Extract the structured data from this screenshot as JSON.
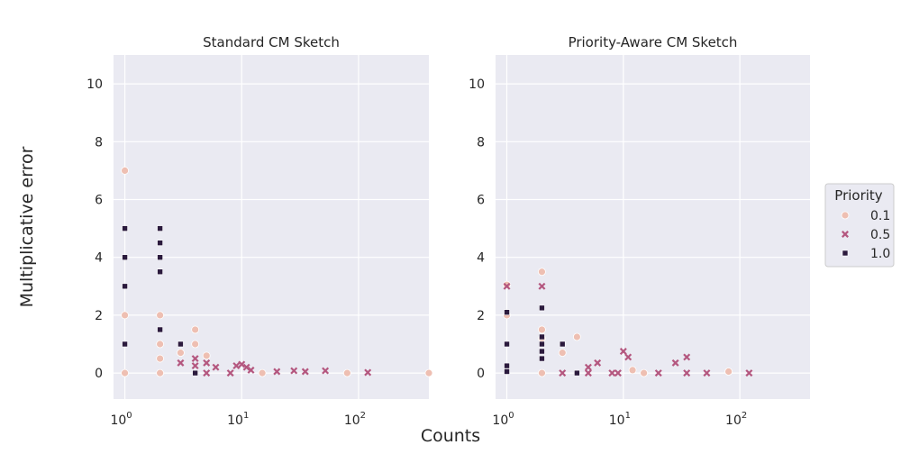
{
  "figure": {
    "xlabel": "Counts",
    "ylabel": "Multiplicative error"
  },
  "legend": {
    "title": "Priority",
    "placement": "right",
    "entries": [
      {
        "label": "0.1",
        "marker": "circle",
        "color": "#eebfb2"
      },
      {
        "label": "0.5",
        "marker": "x",
        "color": "#b4577f"
      },
      {
        "label": "1.0",
        "marker": "square",
        "color": "#2b1a3d"
      }
    ]
  },
  "colors": {
    "panel_background": "#eaeaf2",
    "grid": "#ffffff",
    "text": "#262626"
  },
  "chart_data": [
    {
      "type": "scatter",
      "title": "Standard CM Sketch",
      "xscale": "log",
      "xlim": [
        0.8,
        400
      ],
      "ylim": [
        -0.9,
        11
      ],
      "xticks": [
        1,
        10,
        100
      ],
      "xtick_labels": [
        "10^0",
        "10^1",
        "10^2"
      ],
      "yticks": [
        0,
        2,
        4,
        6,
        8,
        10
      ],
      "grid": true,
      "series": [
        {
          "name": "0.1",
          "marker": "circle",
          "color": "#eebfb2",
          "points": [
            [
              1,
              7
            ],
            [
              1,
              2
            ],
            [
              1,
              0
            ],
            [
              2,
              2
            ],
            [
              2,
              1
            ],
            [
              2,
              0.5
            ],
            [
              2,
              0
            ],
            [
              3,
              0.7
            ],
            [
              4,
              1.5
            ],
            [
              4,
              1
            ],
            [
              5,
              0.6
            ],
            [
              15,
              0
            ],
            [
              80,
              0
            ],
            [
              400,
              0
            ]
          ]
        },
        {
          "name": "0.5",
          "marker": "x",
          "color": "#b4577f",
          "points": [
            [
              3,
              0.35
            ],
            [
              4,
              0.5
            ],
            [
              4,
              0.25
            ],
            [
              5,
              0.35
            ],
            [
              5,
              0
            ],
            [
              6,
              0.2
            ],
            [
              8,
              0
            ],
            [
              9,
              0.25
            ],
            [
              10,
              0.3
            ],
            [
              11,
              0.2
            ],
            [
              12,
              0.1
            ],
            [
              20,
              0.05
            ],
            [
              28,
              0.08
            ],
            [
              35,
              0.05
            ],
            [
              52,
              0.08
            ],
            [
              120,
              0.02
            ]
          ]
        },
        {
          "name": "1.0",
          "marker": "square",
          "color": "#2b1a3d",
          "points": [
            [
              1,
              5
            ],
            [
              1,
              4
            ],
            [
              1,
              3
            ],
            [
              1,
              1
            ],
            [
              2,
              5
            ],
            [
              2,
              4.5
            ],
            [
              2,
              4
            ],
            [
              2,
              3.5
            ],
            [
              2,
              1.5
            ],
            [
              3,
              1
            ],
            [
              4,
              0
            ]
          ]
        }
      ]
    },
    {
      "type": "scatter",
      "title": "Priority-Aware CM Sketch",
      "xscale": "log",
      "xlim": [
        0.8,
        400
      ],
      "ylim": [
        -0.9,
        11
      ],
      "xticks": [
        1,
        10,
        100
      ],
      "xtick_labels": [
        "10^0",
        "10^1",
        "10^2"
      ],
      "yticks": [
        0,
        2,
        4,
        6,
        8,
        10
      ],
      "grid": true,
      "series": [
        {
          "name": "0.1",
          "marker": "circle",
          "color": "#eebfb2",
          "points": [
            [
              1,
              3.05
            ],
            [
              1,
              2
            ],
            [
              2,
              3.5
            ],
            [
              2,
              1.5
            ],
            [
              2,
              1.2
            ],
            [
              2,
              0
            ],
            [
              3,
              0.7
            ],
            [
              4,
              1.25
            ],
            [
              12,
              0.1
            ],
            [
              15,
              0
            ],
            [
              80,
              0.05
            ]
          ]
        },
        {
          "name": "0.5",
          "marker": "x",
          "color": "#b4577f",
          "points": [
            [
              1,
              3
            ],
            [
              2,
              3
            ],
            [
              3,
              0
            ],
            [
              5,
              0.2
            ],
            [
              5,
              0
            ],
            [
              6,
              0.35
            ],
            [
              8,
              0
            ],
            [
              9,
              0
            ],
            [
              10,
              0.75
            ],
            [
              11,
              0.55
            ],
            [
              20,
              0
            ],
            [
              28,
              0.35
            ],
            [
              35,
              0.55
            ],
            [
              35,
              0
            ],
            [
              52,
              0
            ],
            [
              120,
              0
            ]
          ]
        },
        {
          "name": "1.0",
          "marker": "square",
          "color": "#2b1a3d",
          "points": [
            [
              1,
              2.1
            ],
            [
              1,
              1
            ],
            [
              1,
              0.25
            ],
            [
              1,
              0.05
            ],
            [
              2,
              2.25
            ],
            [
              2,
              1.25
            ],
            [
              2,
              1
            ],
            [
              2,
              0.75
            ],
            [
              2,
              0.5
            ],
            [
              3,
              1
            ],
            [
              4,
              0
            ]
          ]
        }
      ]
    }
  ]
}
